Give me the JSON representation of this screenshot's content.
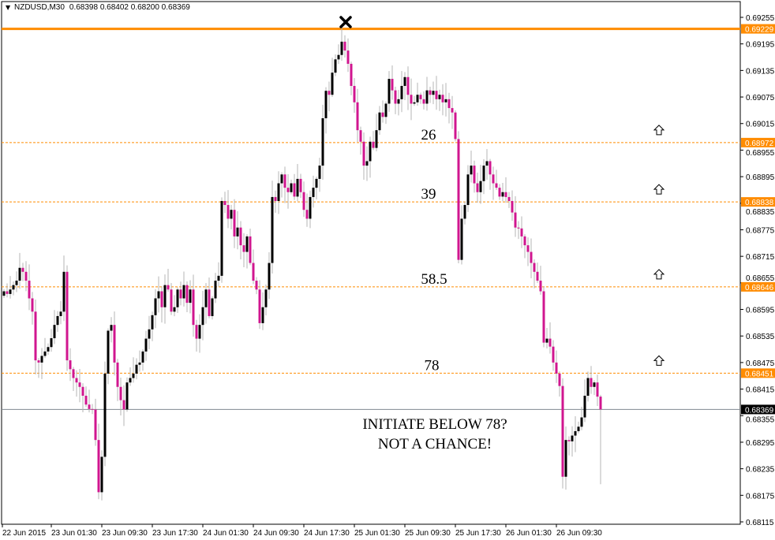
{
  "header": {
    "symbol": "NZDUSD,M30",
    "ohlc": "0.68398 0.68402 0.68200 0.68369"
  },
  "chart_data": {
    "type": "candlestick",
    "title": "NZDUSD,M30",
    "colors": {
      "bull": "#000000",
      "bear": "#d0168f",
      "wick": "#b4b4b4",
      "level": "#ff8c00",
      "bid": "#808890"
    },
    "ylim": [
      0.68115,
      0.69255
    ],
    "y_ticks": [
      "0.69255",
      "0.69195",
      "0.69135",
      "0.69075",
      "0.69015",
      "0.68955",
      "0.68895",
      "0.68835",
      "0.68775",
      "0.68715",
      "0.68655",
      "0.68595",
      "0.68535",
      "0.68475",
      "0.68415",
      "0.68355",
      "0.68295",
      "0.68235",
      "0.68175",
      "0.68115"
    ],
    "x_ticks": [
      "22 Jun 2015",
      "23 Jun 01:30",
      "23 Jun 09:30",
      "23 Jun 17:30",
      "24 Jun 01:30",
      "24 Jun 09:30",
      "24 Jun 17:30",
      "25 Jun 01:30",
      "25 Jun 09:30",
      "25 Jun 17:30",
      "26 Jun 01:30",
      "26 Jun 09:30"
    ],
    "closes": [
      0.68636,
      0.6863,
      0.6864,
      0.6865,
      0.6866,
      0.68689,
      0.6868,
      0.6866,
      0.6862,
      0.6859,
      0.6848,
      0.68475,
      0.6849,
      0.685,
      0.6851,
      0.6853,
      0.6856,
      0.6858,
      0.6859,
      0.6868,
      0.6848,
      0.6846,
      0.6844,
      0.6843,
      0.6842,
      0.684,
      0.6838,
      0.6837,
      0.68369,
      0.683,
      0.68182,
      0.68262,
      0.6845,
      0.68547,
      0.6856,
      0.68475,
      0.6842,
      0.6839,
      0.68369,
      0.6843,
      0.6844,
      0.6845,
      0.6847,
      0.68475,
      0.685,
      0.68529,
      0.6855,
      0.68582,
      0.6862,
      0.68636,
      0.686,
      0.6865,
      0.6864,
      0.6859,
      0.686,
      0.6864,
      0.6862,
      0.6865,
      0.6861,
      0.6864,
      0.6856,
      0.68529,
      0.6856,
      0.686,
      0.6864,
      0.6858,
      0.6862,
      0.6866,
      0.68671,
      0.6884,
      0.68831,
      0.688,
      0.6882,
      0.6876,
      0.6878,
      0.6874,
      0.68725,
      0.6876,
      0.687,
      0.6866,
      0.6864,
      0.68564,
      0.686,
      0.6864,
      0.687,
      0.68849,
      0.6884,
      0.6888,
      0.689,
      0.6887,
      0.6886,
      0.6888,
      0.6885,
      0.6889,
      0.6886,
      0.6882,
      0.688,
      0.68849,
      0.6887,
      0.6889,
      0.6892,
      0.69027,
      0.69089,
      0.6908,
      0.6913,
      0.6916,
      0.6917,
      0.692,
      0.6918,
      0.6915,
      0.691,
      0.69063,
      0.69,
      0.68974,
      0.6892,
      0.6893,
      0.68974,
      0.6896,
      0.69,
      0.6904,
      0.6903,
      0.6906,
      0.69116,
      0.6909,
      0.6906,
      0.6907,
      0.691,
      0.6912,
      0.6908,
      0.6906,
      0.69063,
      0.6908,
      0.6907,
      0.6906,
      0.6909,
      0.6908,
      0.69089,
      0.6907,
      0.6908,
      0.69063,
      0.6907,
      0.6905,
      0.6904,
      0.6898,
      0.68707,
      0.688,
      0.68831,
      0.689,
      0.6892,
      0.6888,
      0.6886,
      0.68885,
      0.6892,
      0.6893,
      0.689,
      0.6888,
      0.6887,
      0.6885,
      0.6886,
      0.68849,
      0.6884,
      0.68814,
      0.6878,
      0.68778,
      0.6876,
      0.6874,
      0.68725,
      0.687,
      0.6868,
      0.6866,
      0.68636,
      0.6852,
      0.68529,
      0.68511,
      0.68475,
      0.6845,
      0.68422,
      0.68217,
      0.683,
      0.68297,
      0.6831,
      0.6832,
      0.6833,
      0.68351,
      0.684,
      0.6844,
      0.6842,
      0.6843,
      0.68398,
      0.68369
    ],
    "last_bar": {
      "open": 0.68398,
      "high": 0.68402,
      "low": 0.682,
      "close": 0.68369
    },
    "levels": [
      {
        "price": 0.69229,
        "label": "0.69229",
        "style": "solid"
      },
      {
        "price": 0.68972,
        "label": "0.68972",
        "style": "dashed",
        "fib": "26"
      },
      {
        "price": 0.68838,
        "label": "0.68838",
        "style": "dashed",
        "fib": "39"
      },
      {
        "price": 0.68646,
        "label": "0.68646",
        "style": "dashed",
        "fib": "58.5"
      },
      {
        "price": 0.68451,
        "label": "0.68451",
        "style": "dashed",
        "fib": "78"
      }
    ],
    "bid": {
      "price": 0.68369,
      "label": "0.68369"
    },
    "annotations": [
      "INITIATE BELOW 78?",
      "NOT A CHANCE!"
    ],
    "icons": {
      "peak_marker": "cross-icon",
      "level_marker": "up-arrow-icon"
    }
  }
}
